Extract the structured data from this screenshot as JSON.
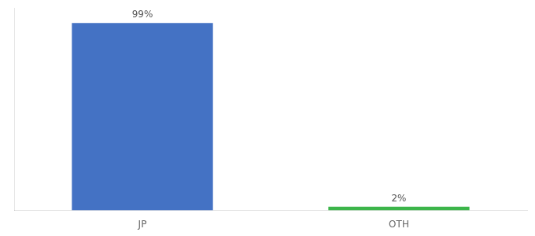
{
  "chart_data": {
    "type": "bar",
    "categories": [
      "JP",
      "OTH"
    ],
    "values": [
      99,
      2
    ],
    "value_labels": [
      "99%",
      "2%"
    ],
    "colors": [
      "#4472c4",
      "#3cb54a"
    ],
    "ylim": [
      0,
      107
    ],
    "grid": false,
    "data_labels": true,
    "tick_labels": "x"
  }
}
